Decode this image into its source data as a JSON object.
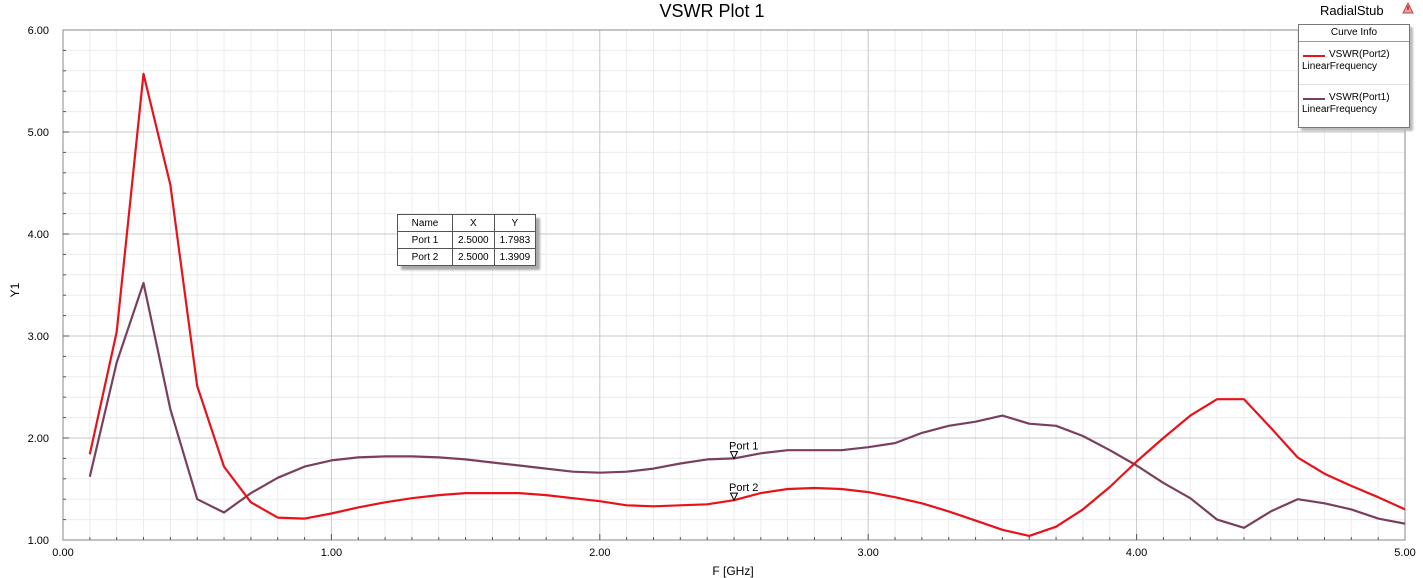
{
  "window": {
    "project_name": "RadialStub",
    "project_icon": "warning-triangle-icon"
  },
  "chart_data": {
    "type": "line",
    "title": "VSWR Plot 1",
    "xlabel": "F [GHz]",
    "ylabel": "Y1",
    "xlim": [
      0,
      5
    ],
    "ylim": [
      1,
      6
    ],
    "grid": true,
    "x_ticks": [
      "0.00",
      "1.00",
      "2.00",
      "3.00",
      "4.00",
      "5.00"
    ],
    "y_ticks": [
      "1.00",
      "2.00",
      "3.00",
      "4.00",
      "5.00",
      "6.00"
    ],
    "legend_placement": "top-right",
    "legend_title": "Curve Info",
    "series": [
      {
        "name": "VSWR(Port2)",
        "sweep": "LinearFrequency",
        "color": "#e8121a",
        "x": [
          0.1,
          0.2,
          0.3,
          0.4,
          0.5,
          0.6,
          0.7,
          0.8,
          0.9,
          1.0,
          1.1,
          1.2,
          1.3,
          1.4,
          1.5,
          1.6,
          1.7,
          1.8,
          1.9,
          2.0,
          2.1,
          2.2,
          2.3,
          2.4,
          2.5,
          2.6,
          2.7,
          2.8,
          2.9,
          3.0,
          3.1,
          3.2,
          3.3,
          3.4,
          3.5,
          3.6,
          3.7,
          3.8,
          3.9,
          4.0,
          4.1,
          4.2,
          4.3,
          4.4,
          4.5,
          4.6,
          4.7,
          4.8,
          4.9,
          5.0
        ],
        "y": [
          1.84,
          3.04,
          5.57,
          4.48,
          2.51,
          1.72,
          1.37,
          1.22,
          1.21,
          1.26,
          1.32,
          1.37,
          1.41,
          1.44,
          1.46,
          1.46,
          1.46,
          1.44,
          1.41,
          1.38,
          1.34,
          1.33,
          1.34,
          1.35,
          1.39,
          1.46,
          1.5,
          1.51,
          1.5,
          1.47,
          1.42,
          1.36,
          1.28,
          1.19,
          1.1,
          1.04,
          1.13,
          1.3,
          1.52,
          1.77,
          2.0,
          2.22,
          2.38,
          2.38,
          2.1,
          1.81,
          1.65,
          1.53,
          1.42,
          1.3
        ]
      },
      {
        "name": "VSWR(Port1)",
        "sweep": "LinearFrequency",
        "color": "#7b3f5e",
        "x": [
          0.1,
          0.2,
          0.3,
          0.4,
          0.5,
          0.6,
          0.7,
          0.8,
          0.9,
          1.0,
          1.1,
          1.2,
          1.3,
          1.4,
          1.5,
          1.6,
          1.7,
          1.8,
          1.9,
          2.0,
          2.1,
          2.2,
          2.3,
          2.4,
          2.5,
          2.6,
          2.7,
          2.8,
          2.9,
          3.0,
          3.1,
          3.2,
          3.3,
          3.4,
          3.5,
          3.6,
          3.7,
          3.8,
          3.9,
          4.0,
          4.1,
          4.2,
          4.3,
          4.4,
          4.5,
          4.6,
          4.7,
          4.8,
          4.9,
          5.0
        ],
        "y": [
          1.62,
          2.74,
          3.52,
          2.28,
          1.4,
          1.27,
          1.46,
          1.61,
          1.72,
          1.78,
          1.81,
          1.82,
          1.82,
          1.81,
          1.79,
          1.76,
          1.73,
          1.7,
          1.67,
          1.66,
          1.67,
          1.7,
          1.75,
          1.79,
          1.8,
          1.85,
          1.88,
          1.88,
          1.88,
          1.91,
          1.95,
          2.05,
          2.12,
          2.16,
          2.22,
          2.14,
          2.12,
          2.02,
          1.88,
          1.73,
          1.56,
          1.41,
          1.2,
          1.12,
          1.28,
          1.4,
          1.36,
          1.3,
          1.21,
          1.16
        ]
      }
    ],
    "markers": [
      {
        "name": "Port 1",
        "x": 2.5,
        "y": 1.7983
      },
      {
        "name": "Port 2",
        "x": 2.5,
        "y": 1.3909
      }
    ],
    "marker_table": {
      "headers": [
        "Name",
        "X",
        "Y"
      ],
      "rows": [
        [
          "Port 1",
          "2.5000",
          "1.7983"
        ],
        [
          "Port 2",
          "2.5000",
          "1.3909"
        ]
      ]
    }
  }
}
